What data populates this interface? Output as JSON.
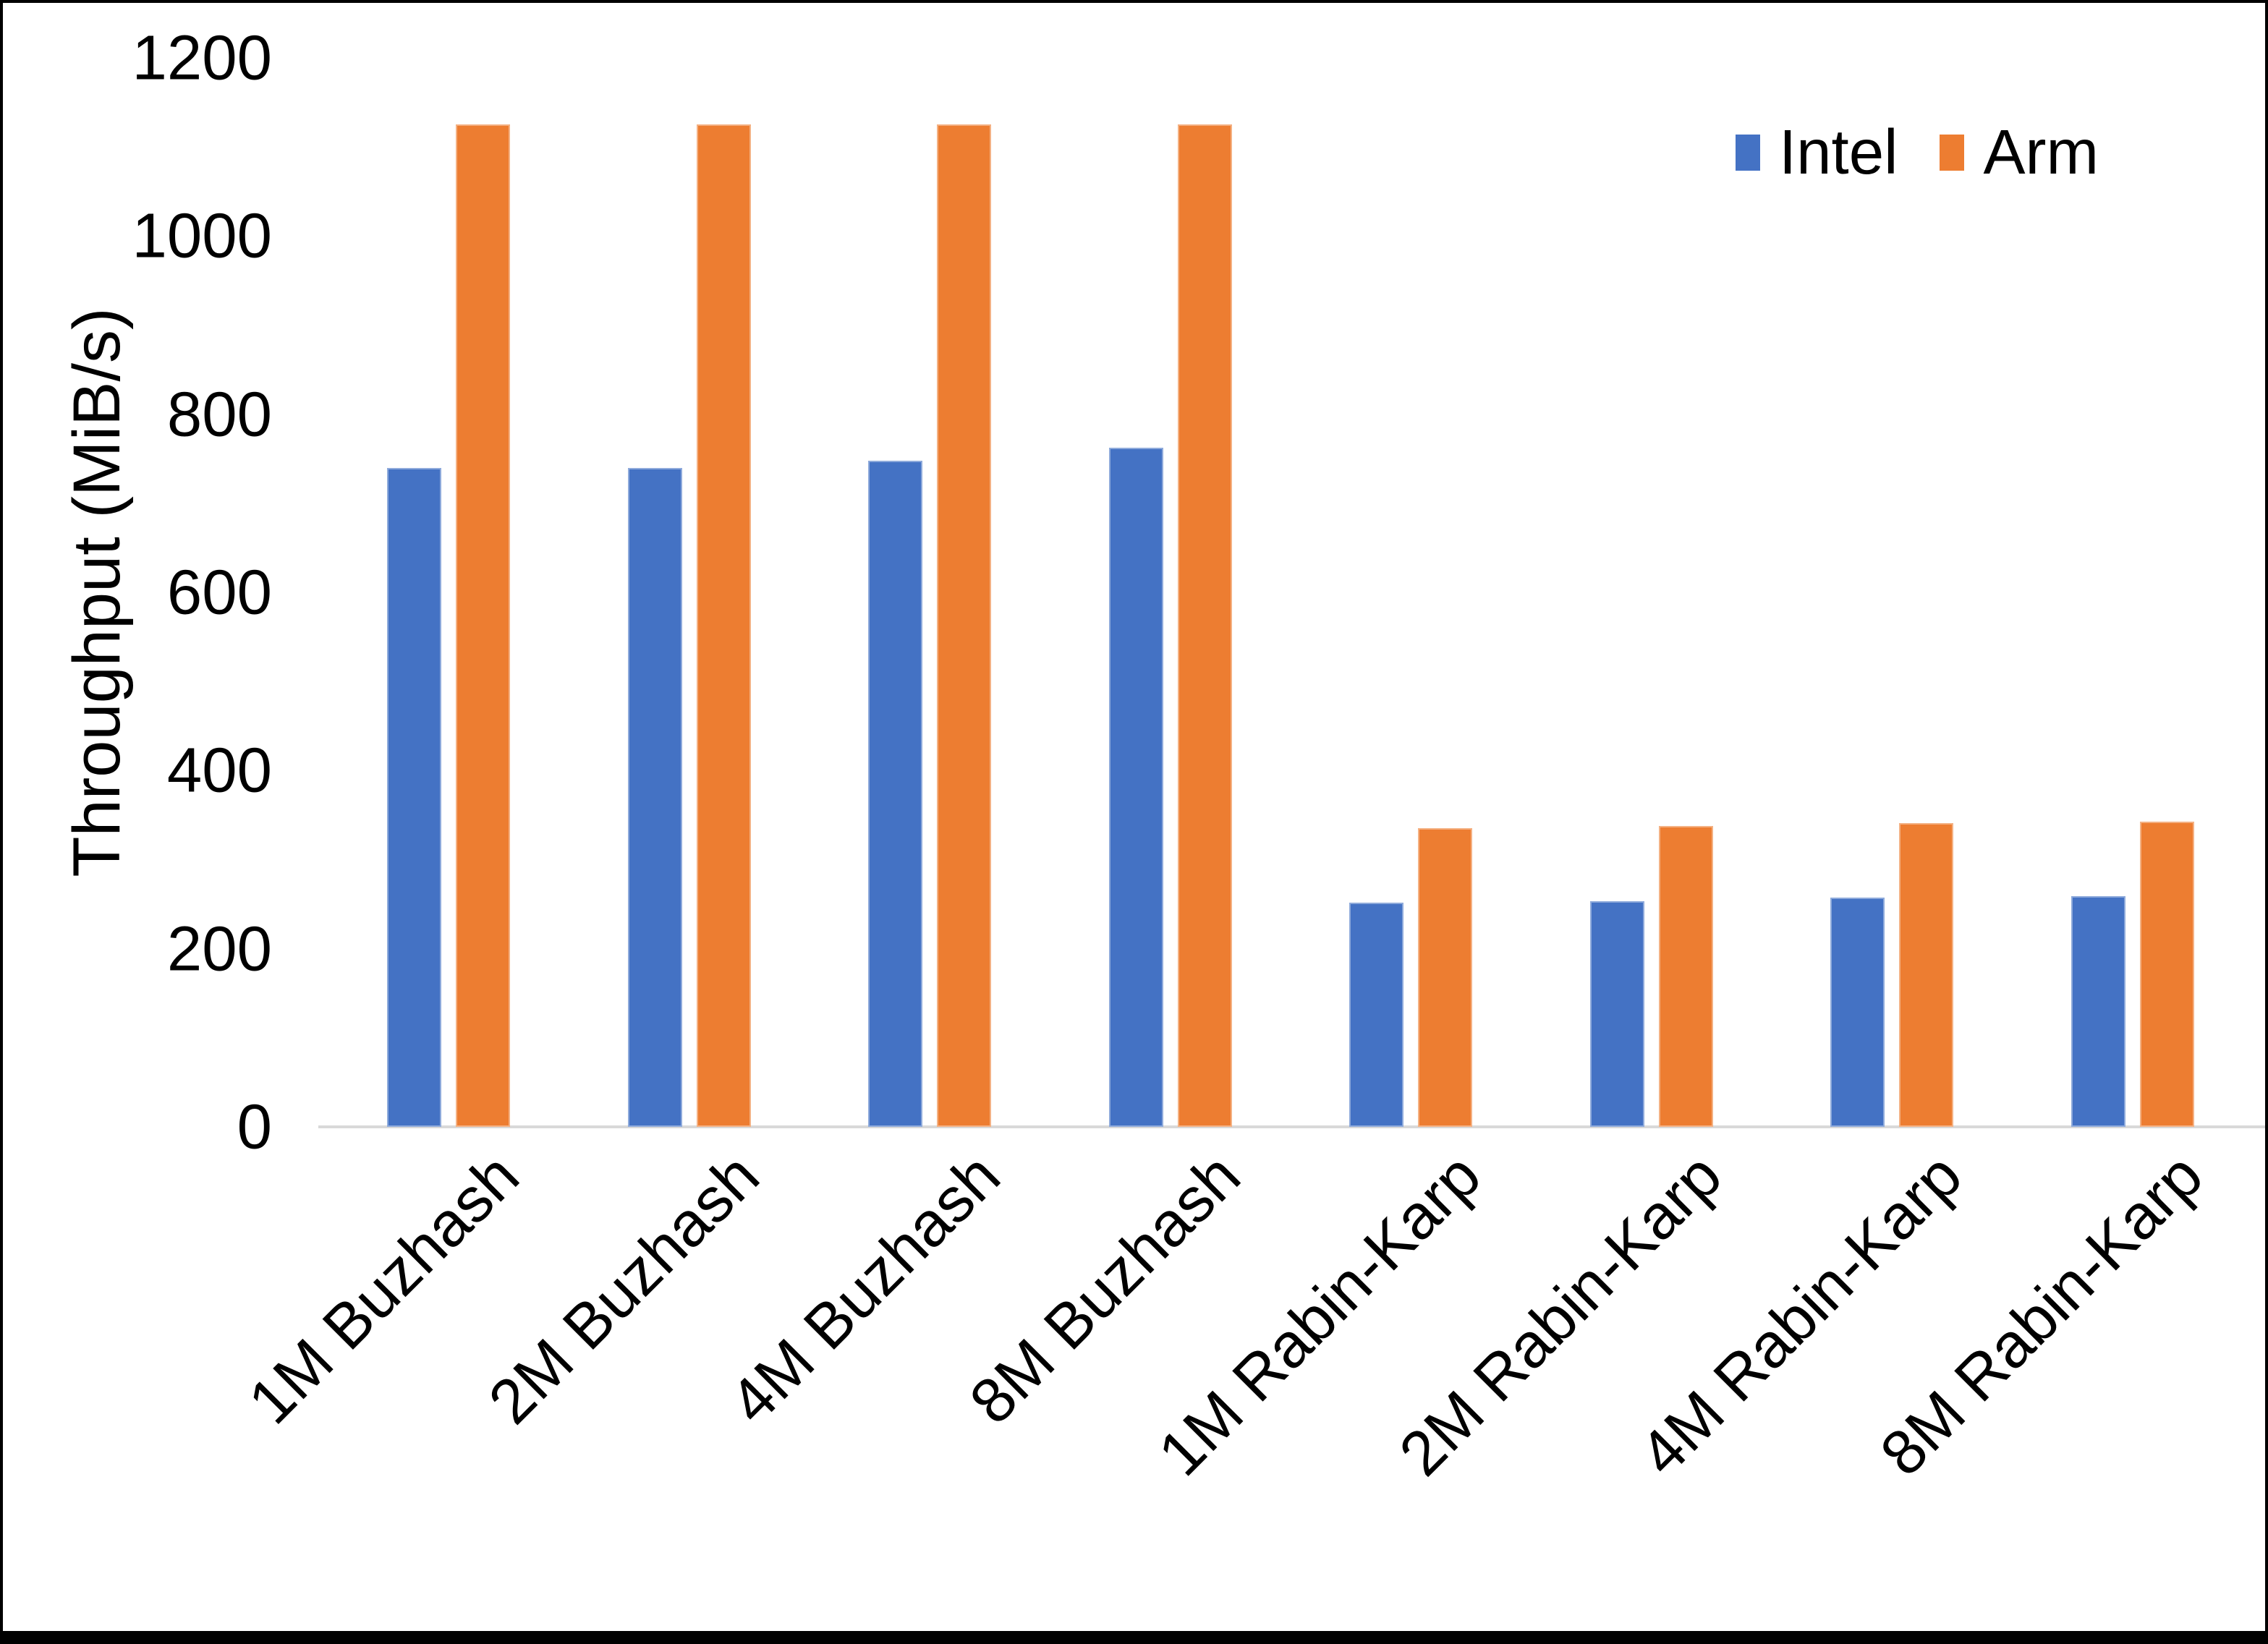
{
  "figure": {
    "background": "#FFFFFF",
    "frame_color": "#000000",
    "axis_line_color": "#D9D9D9",
    "text_color": "#000000"
  },
  "chart_data": {
    "type": "bar",
    "title": "",
    "xlabel": "",
    "ylabel": "Throughput (MiB/s)",
    "ylim": [
      0,
      1200
    ],
    "ytick_interval": 200,
    "yticks": [
      0,
      200,
      400,
      600,
      800,
      1000,
      1200
    ],
    "grid": false,
    "legend_position": "top-right",
    "categories": [
      "1M Buzhash",
      "2M Buzhash",
      "4M Buzhash",
      "8M Buzhash",
      "1M Rabin-Karp",
      "2M Rabin-Karp",
      "4M Rabin-Karp",
      "8M Rabin-Karp"
    ],
    "series": [
      {
        "name": "Intel",
        "color": "#4472C4",
        "values": [
          740,
          740,
          748,
          762,
          252,
          253,
          257,
          259
        ]
      },
      {
        "name": "Arm",
        "color": "#ED7D31",
        "values": [
          1125,
          1125,
          1125,
          1125,
          335,
          338,
          341,
          343
        ]
      }
    ]
  }
}
